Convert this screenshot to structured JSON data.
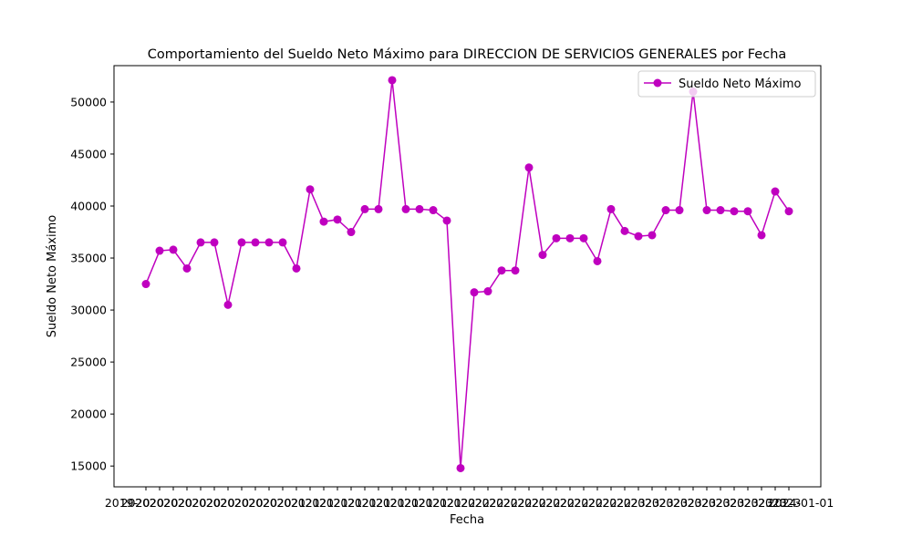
{
  "chart_data": {
    "type": "line",
    "title": "Comportamiento del Sueldo Neto Máximo para DIRECCION DE SERVICIOS GENERALES por Fecha",
    "xlabel": "Fecha",
    "ylabel": "Sueldo Neto Máximo",
    "ylim": [
      13000,
      53500
    ],
    "yticks": [
      15000,
      20000,
      25000,
      30000,
      35000,
      40000,
      45000,
      50000
    ],
    "grid": false,
    "legend_position": "top-right",
    "x_tick_labels": [
      "2019-",
      "2020",
      "2020",
      "2020",
      "2020",
      "2020",
      "2020",
      "2020",
      "2020",
      "2020",
      "2020",
      "2020",
      "2021",
      "2021",
      "2021",
      "2021",
      "2021",
      "2021",
      "2021",
      "2021",
      "2021",
      "2021",
      "2021",
      "2021",
      "2022",
      "2022",
      "2022",
      "2022",
      "2022",
      "2022",
      "2022",
      "2022",
      "2022",
      "2022",
      "2022",
      "2022",
      "2023",
      "2023",
      "2023",
      "2023",
      "2023",
      "2023",
      "2023",
      "2023",
      "2023",
      "2023",
      "2023",
      "2023",
      "2024-01-01"
    ],
    "series": [
      {
        "name": "Sueldo Neto Máximo",
        "color": "#bf00bf",
        "values": [
          32500,
          35700,
          35800,
          34000,
          36500,
          36500,
          30500,
          36500,
          36500,
          36500,
          36500,
          34000,
          41600,
          38500,
          38700,
          37500,
          39700,
          39700,
          52100,
          39700,
          39700,
          39600,
          38600,
          14800,
          31700,
          31800,
          33800,
          33800,
          43700,
          35300,
          36900,
          36900,
          36900,
          34700,
          39700,
          37600,
          37100,
          37200,
          39600,
          39600,
          51000,
          39600,
          39600,
          39500,
          39500,
          37200,
          41400,
          39500
        ]
      }
    ]
  }
}
